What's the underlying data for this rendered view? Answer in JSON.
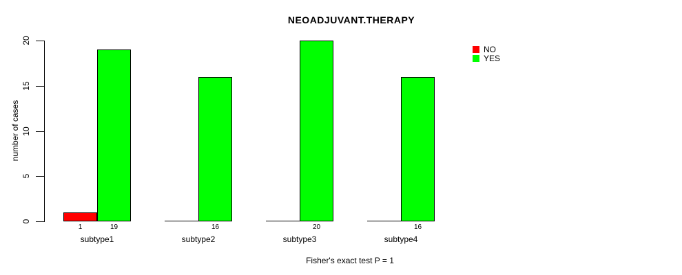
{
  "chart_data": {
    "type": "bar",
    "title": "NEOADJUVANT.THERAPY",
    "xlabel": "Fisher's exact test P = 1",
    "ylabel": "number of cases",
    "categories": [
      "subtype1",
      "subtype2",
      "subtype3",
      "subtype4"
    ],
    "series": [
      {
        "name": "NO",
        "color": "#FF0000",
        "values": [
          1,
          0,
          0,
          0
        ]
      },
      {
        "name": "YES",
        "color": "#00FF00",
        "values": [
          19,
          16,
          20,
          16
        ]
      }
    ],
    "bar_value_labels_shown": [
      [
        1,
        null,
        null,
        null
      ],
      [
        19,
        16,
        20,
        16
      ]
    ],
    "yticks": [
      0,
      5,
      10,
      15,
      20
    ],
    "ylim": [
      0,
      20
    ],
    "grid": false,
    "legend_position": "top-right",
    "legend": [
      {
        "label": "NO",
        "color": "#FF0000"
      },
      {
        "label": "YES",
        "color": "#00FF00"
      }
    ]
  }
}
